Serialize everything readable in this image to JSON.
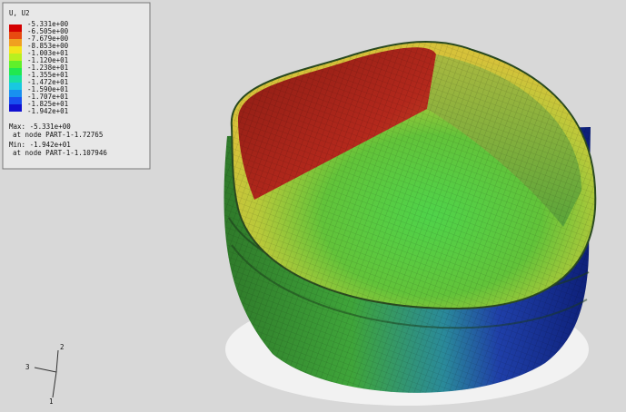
{
  "legend": {
    "title": "U, U2",
    "labels": [
      "-5.331e+00",
      "-6.505e+00",
      "-7.679e+00",
      "-8.853e+00",
      "-1.003e+01",
      "-1.120e+01",
      "-1.238e+01",
      "-1.355e+01",
      "-1.472e+01",
      "-1.590e+01",
      "-1.707e+01",
      "-1.825e+01",
      "-1.942e+01"
    ],
    "max_label": "Max: -5.331e+00",
    "max_node": "at node PART-1-1.72765",
    "min_label": "Min: -1.942e+01",
    "min_node": "at node PART-1-1.107946"
  },
  "triad": {
    "y_axis": "2",
    "z_axis": "3",
    "x_axis": "1"
  }
}
